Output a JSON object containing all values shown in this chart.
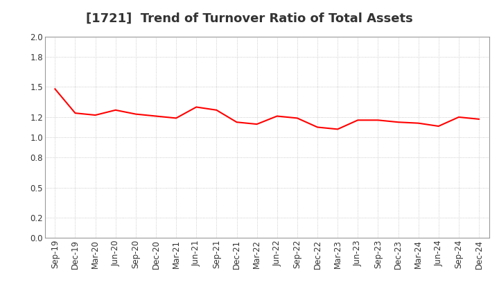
{
  "title": "[1721]  Trend of Turnover Ratio of Total Assets",
  "labels": [
    "Sep-19",
    "Dec-19",
    "Mar-20",
    "Jun-20",
    "Sep-20",
    "Dec-20",
    "Mar-21",
    "Jun-21",
    "Sep-21",
    "Dec-21",
    "Mar-22",
    "Jun-22",
    "Sep-22",
    "Dec-22",
    "Mar-23",
    "Jun-23",
    "Sep-23",
    "Dec-23",
    "Mar-24",
    "Jun-24",
    "Sep-24",
    "Dec-24"
  ],
  "values": [
    1.48,
    1.24,
    1.22,
    1.27,
    1.23,
    1.21,
    1.19,
    1.3,
    1.27,
    1.15,
    1.13,
    1.21,
    1.19,
    1.1,
    1.08,
    1.17,
    1.17,
    1.15,
    1.14,
    1.11,
    1.2,
    1.18
  ],
  "line_color": "#ff0000",
  "line_width": 1.5,
  "ylim": [
    0.0,
    2.0
  ],
  "yticks": [
    0.0,
    0.2,
    0.5,
    0.8,
    1.0,
    1.2,
    1.5,
    1.8,
    2.0
  ],
  "background_color": "#ffffff",
  "grid_color": "#bbbbbb",
  "title_fontsize": 13,
  "tick_fontsize": 8.5,
  "title_color": "#333333"
}
